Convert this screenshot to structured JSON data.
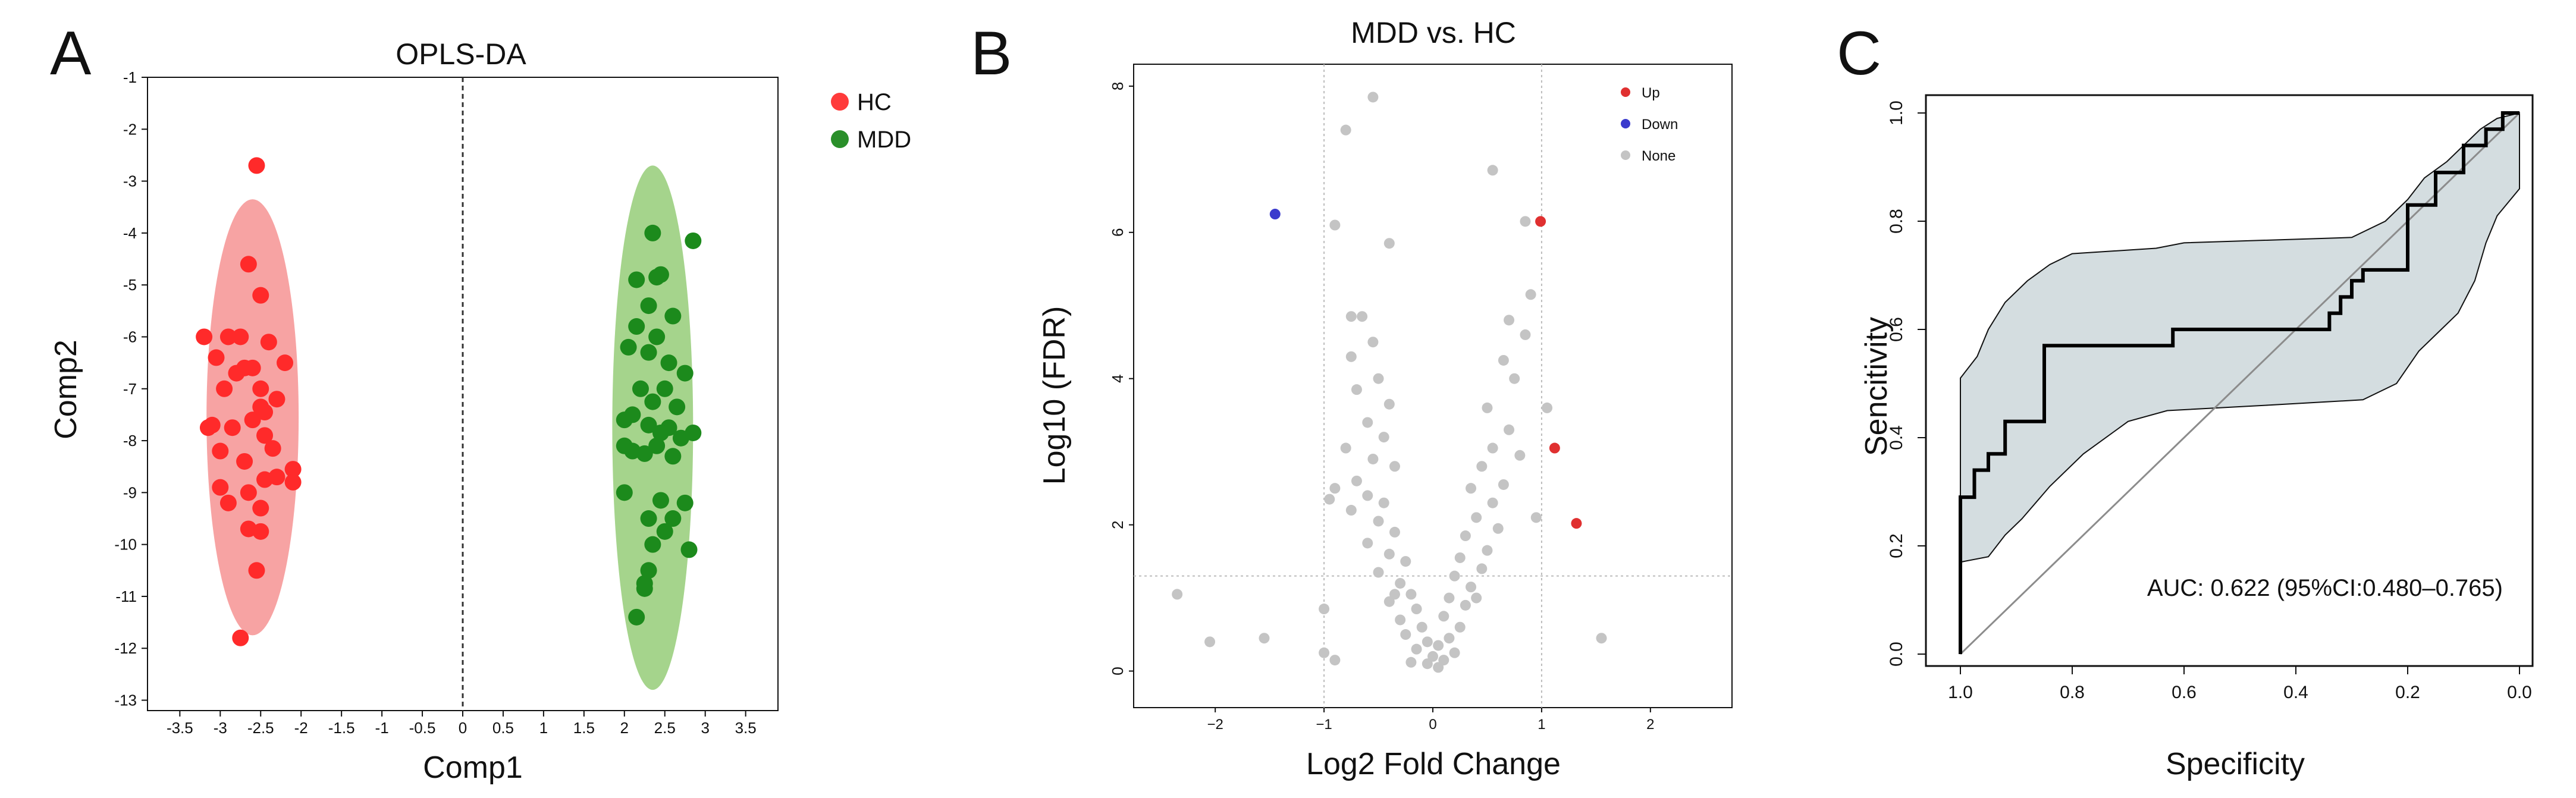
{
  "chart_data": [
    {
      "panel": "A",
      "type": "scatter",
      "title": "OPLS-DA",
      "xlabel": "Comp1",
      "ylabel": "Comp2",
      "xlim": [
        -3.9,
        3.9
      ],
      "ylim": [
        -13.2,
        -1.0
      ],
      "xticks": [
        -3.5,
        -3,
        -2.5,
        -2,
        -1.5,
        -1,
        -0.5,
        0,
        0.5,
        1,
        1.5,
        2,
        2.5,
        3,
        3.5
      ],
      "xtick_labels": [
        "-3.5",
        "-3",
        "-2.5",
        "-2",
        "-1.5",
        "-1",
        "-0.5",
        "0",
        "0.5",
        "1",
        "1.5",
        "2",
        "2.5",
        "3",
        "3.5"
      ],
      "yticks": [
        -1,
        -2,
        -3,
        -4,
        -5,
        -6,
        -7,
        -8,
        -9,
        -10,
        -11,
        -12,
        -13
      ],
      "ytick_labels": [
        "-1",
        "-2",
        "-3",
        "-4",
        "-5",
        "-6",
        "-7",
        "-8",
        "-9",
        "-10",
        "-11",
        "-12",
        "-13"
      ],
      "legend_position": "outside-right",
      "series": [
        {
          "name": "HC",
          "color": "#ff2a2a",
          "ellipse_color": "#f7a3a3",
          "ellipse": {
            "cx": -2.6,
            "cy": -7.55,
            "rx": 0.57,
            "ry": 4.2
          },
          "points": [
            [
              -2.55,
              -2.7
            ],
            [
              -2.65,
              -4.6
            ],
            [
              -2.5,
              -5.2
            ],
            [
              -3.2,
              -6.0
            ],
            [
              -2.9,
              -6.0
            ],
            [
              -2.75,
              -6.0
            ],
            [
              -2.4,
              -6.1
            ],
            [
              -3.05,
              -6.4
            ],
            [
              -2.7,
              -6.6
            ],
            [
              -2.6,
              -6.6
            ],
            [
              -2.2,
              -6.5
            ],
            [
              -2.8,
              -6.7
            ],
            [
              -2.95,
              -7.0
            ],
            [
              -2.5,
              -7.0
            ],
            [
              -2.3,
              -7.2
            ],
            [
              -2.5,
              -7.35
            ],
            [
              -2.45,
              -7.45
            ],
            [
              -3.1,
              -7.7
            ],
            [
              -3.15,
              -7.75
            ],
            [
              -2.85,
              -7.75
            ],
            [
              -2.6,
              -7.6
            ],
            [
              -2.45,
              -7.9
            ],
            [
              -3.0,
              -8.2
            ],
            [
              -2.35,
              -8.15
            ],
            [
              -2.7,
              -8.4
            ],
            [
              -2.1,
              -8.55
            ],
            [
              -3.0,
              -8.9
            ],
            [
              -2.45,
              -8.75
            ],
            [
              -2.3,
              -8.7
            ],
            [
              -2.1,
              -8.8
            ],
            [
              -2.9,
              -9.2
            ],
            [
              -2.65,
              -9.0
            ],
            [
              -2.5,
              -9.3
            ],
            [
              -2.65,
              -9.7
            ],
            [
              -2.5,
              -9.75
            ],
            [
              -2.55,
              -10.5
            ],
            [
              -2.75,
              -11.8
            ]
          ]
        },
        {
          "name": "MDD",
          "color": "#1c8a1c",
          "ellipse_color": "#a5d48c",
          "ellipse": {
            "cx": 2.35,
            "cy": -7.75,
            "rx": 0.5,
            "ry": 5.05
          },
          "points": [
            [
              2.35,
              -4.0
            ],
            [
              2.85,
              -4.15
            ],
            [
              2.45,
              -4.8
            ],
            [
              2.4,
              -4.85
            ],
            [
              2.15,
              -4.9
            ],
            [
              2.3,
              -5.4
            ],
            [
              2.6,
              -5.6
            ],
            [
              2.15,
              -5.8
            ],
            [
              2.4,
              -6.0
            ],
            [
              2.05,
              -6.2
            ],
            [
              2.3,
              -6.3
            ],
            [
              2.55,
              -6.5
            ],
            [
              2.75,
              -6.7
            ],
            [
              2.2,
              -7.0
            ],
            [
              2.5,
              -7.0
            ],
            [
              2.35,
              -7.25
            ],
            [
              2.65,
              -7.35
            ],
            [
              2.0,
              -7.6
            ],
            [
              2.1,
              -7.5
            ],
            [
              2.3,
              -7.7
            ],
            [
              2.55,
              -7.75
            ],
            [
              2.45,
              -7.85
            ],
            [
              2.85,
              -7.85
            ],
            [
              2.7,
              -7.95
            ],
            [
              2.0,
              -8.1
            ],
            [
              2.1,
              -8.2
            ],
            [
              2.25,
              -8.25
            ],
            [
              2.4,
              -8.1
            ],
            [
              2.6,
              -8.3
            ],
            [
              2.0,
              -9.0
            ],
            [
              2.45,
              -9.15
            ],
            [
              2.75,
              -9.2
            ],
            [
              2.3,
              -9.5
            ],
            [
              2.6,
              -9.5
            ],
            [
              2.5,
              -9.75
            ],
            [
              2.35,
              -10.0
            ],
            [
              2.8,
              -10.1
            ],
            [
              2.3,
              -10.5
            ],
            [
              2.25,
              -10.75
            ],
            [
              2.25,
              -10.85
            ],
            [
              2.15,
              -11.4
            ]
          ]
        }
      ]
    },
    {
      "panel": "B",
      "type": "scatter",
      "title": "MDD vs. HC",
      "xlabel": "Log2 Fold Change",
      "ylabel": "Log10 (FDR)",
      "xlim": [
        -2.75,
        2.75
      ],
      "ylim": [
        -0.5,
        8.3
      ],
      "xticks": [
        -2,
        -1,
        0,
        1,
        2
      ],
      "xtick_labels": [
        "−2",
        "−1",
        "0",
        "1",
        "2"
      ],
      "yticks": [
        0,
        2,
        4,
        6,
        8
      ],
      "ytick_labels": [
        "0",
        "2",
        "4",
        "6",
        "8"
      ],
      "threshold_lines": {
        "x": [
          -1,
          1
        ],
        "y": 1.3
      },
      "legend_position": "top-right",
      "series": [
        {
          "name": "Up",
          "color": "#e03030",
          "points": [
            [
              0.99,
              6.15
            ],
            [
              1.12,
              3.05
            ],
            [
              1.32,
              2.02
            ]
          ]
        },
        {
          "name": "Down",
          "color": "#3a3acd",
          "points": [
            [
              -1.45,
              6.25
            ]
          ]
        },
        {
          "name": "None",
          "color": "#c4c4c4",
          "points": [
            [
              -0.55,
              7.85
            ],
            [
              -0.8,
              7.4
            ],
            [
              0.55,
              6.85
            ],
            [
              -0.9,
              6.1
            ],
            [
              0.85,
              6.15
            ],
            [
              -0.4,
              5.85
            ],
            [
              -0.75,
              4.85
            ],
            [
              -0.65,
              4.85
            ],
            [
              -0.55,
              4.5
            ],
            [
              -0.75,
              4.3
            ],
            [
              -0.5,
              4.0
            ],
            [
              -0.4,
              3.65
            ],
            [
              -0.7,
              3.85
            ],
            [
              -0.6,
              3.4
            ],
            [
              -0.45,
              3.2
            ],
            [
              -0.8,
              3.05
            ],
            [
              -0.55,
              2.9
            ],
            [
              -0.35,
              2.8
            ],
            [
              -0.7,
              2.6
            ],
            [
              -0.6,
              2.4
            ],
            [
              -0.45,
              2.3
            ],
            [
              -0.9,
              2.5
            ],
            [
              -0.75,
              2.2
            ],
            [
              -0.5,
              2.05
            ],
            [
              -0.35,
              1.9
            ],
            [
              -0.6,
              1.75
            ],
            [
              -0.4,
              1.6
            ],
            [
              -0.25,
              1.5
            ],
            [
              -0.5,
              1.35
            ],
            [
              -0.3,
              1.2
            ],
            [
              -0.2,
              1.05
            ],
            [
              -0.4,
              0.95
            ],
            [
              -0.15,
              0.85
            ],
            [
              -0.3,
              0.7
            ],
            [
              -0.1,
              0.6
            ],
            [
              -0.25,
              0.5
            ],
            [
              -0.05,
              0.4
            ],
            [
              -0.15,
              0.3
            ],
            [
              0.0,
              0.2
            ],
            [
              -0.05,
              0.1
            ],
            [
              0.05,
              0.05
            ],
            [
              0.1,
              0.15
            ],
            [
              -0.2,
              0.12
            ],
            [
              0.9,
              5.15
            ],
            [
              0.7,
              4.8
            ],
            [
              0.85,
              4.6
            ],
            [
              0.65,
              4.25
            ],
            [
              0.75,
              4.0
            ],
            [
              0.5,
              3.6
            ],
            [
              0.7,
              3.3
            ],
            [
              0.55,
              3.05
            ],
            [
              0.8,
              2.95
            ],
            [
              0.45,
              2.8
            ],
            [
              0.65,
              2.55
            ],
            [
              0.35,
              2.5
            ],
            [
              0.55,
              2.3
            ],
            [
              0.4,
              2.1
            ],
            [
              0.6,
              1.95
            ],
            [
              0.3,
              1.85
            ],
            [
              0.5,
              1.65
            ],
            [
              0.25,
              1.55
            ],
            [
              0.45,
              1.4
            ],
            [
              0.2,
              1.3
            ],
            [
              0.35,
              1.15
            ],
            [
              0.15,
              1.0
            ],
            [
              0.3,
              0.9
            ],
            [
              0.1,
              0.75
            ],
            [
              0.25,
              0.6
            ],
            [
              0.15,
              0.45
            ],
            [
              0.05,
              0.35
            ],
            [
              0.2,
              0.25
            ],
            [
              1.05,
              3.6
            ],
            [
              0.95,
              2.1
            ],
            [
              -1.0,
              0.85
            ],
            [
              -0.95,
              2.35
            ],
            [
              -2.35,
              1.05
            ],
            [
              -2.05,
              0.4
            ],
            [
              -1.0,
              0.25
            ],
            [
              -0.9,
              0.15
            ],
            [
              1.55,
              0.45
            ],
            [
              -1.55,
              0.45
            ],
            [
              0.4,
              1.0
            ],
            [
              -0.35,
              1.05
            ]
          ]
        }
      ]
    },
    {
      "panel": "C",
      "type": "line",
      "title": "",
      "xlabel": "Specificity",
      "ylabel": "Sencitivity",
      "xlim": [
        1.0,
        0.0
      ],
      "ylim": [
        0.0,
        1.0
      ],
      "xticks": [
        1.0,
        0.8,
        0.6,
        0.4,
        0.2,
        0.0
      ],
      "xtick_labels": [
        "1.0",
        "0.8",
        "0.6",
        "0.4",
        "0.2",
        "0.0"
      ],
      "yticks": [
        0.0,
        0.2,
        0.4,
        0.6,
        0.8,
        1.0
      ],
      "ytick_labels": [
        "0.0",
        "0.2",
        "0.4",
        "0.6",
        "0.8",
        "1.0"
      ],
      "annotation": "AUC: 0.622 (95%CI:0.480–0.765)",
      "diagonal": [
        [
          1.0,
          0.0
        ],
        [
          0.0,
          1.0
        ]
      ],
      "roc_curve": [
        [
          1.0,
          0.0
        ],
        [
          1.0,
          0.29
        ],
        [
          0.975,
          0.29
        ],
        [
          0.975,
          0.34
        ],
        [
          0.95,
          0.34
        ],
        [
          0.95,
          0.37
        ],
        [
          0.92,
          0.37
        ],
        [
          0.92,
          0.43
        ],
        [
          0.85,
          0.43
        ],
        [
          0.85,
          0.57
        ],
        [
          0.62,
          0.57
        ],
        [
          0.62,
          0.6
        ],
        [
          0.34,
          0.6
        ],
        [
          0.34,
          0.63
        ],
        [
          0.32,
          0.63
        ],
        [
          0.32,
          0.66
        ],
        [
          0.3,
          0.66
        ],
        [
          0.3,
          0.69
        ],
        [
          0.28,
          0.69
        ],
        [
          0.28,
          0.71
        ],
        [
          0.2,
          0.71
        ],
        [
          0.2,
          0.83
        ],
        [
          0.15,
          0.83
        ],
        [
          0.15,
          0.89
        ],
        [
          0.1,
          0.89
        ],
        [
          0.1,
          0.94
        ],
        [
          0.06,
          0.94
        ],
        [
          0.06,
          0.97
        ],
        [
          0.03,
          0.97
        ],
        [
          0.03,
          1.0
        ],
        [
          0.0,
          1.0
        ]
      ],
      "ci_upper": [
        [
          1.0,
          0.51
        ],
        [
          0.97,
          0.55
        ],
        [
          0.95,
          0.6
        ],
        [
          0.92,
          0.65
        ],
        [
          0.88,
          0.69
        ],
        [
          0.84,
          0.72
        ],
        [
          0.8,
          0.74
        ],
        [
          0.65,
          0.75
        ],
        [
          0.6,
          0.76
        ],
        [
          0.3,
          0.77
        ],
        [
          0.24,
          0.8
        ],
        [
          0.2,
          0.84
        ],
        [
          0.17,
          0.88
        ],
        [
          0.13,
          0.91
        ],
        [
          0.1,
          0.94
        ],
        [
          0.07,
          0.97
        ],
        [
          0.04,
          0.99
        ],
        [
          0.0,
          1.0
        ]
      ],
      "ci_lower": [
        [
          1.0,
          0.17
        ],
        [
          0.95,
          0.18
        ],
        [
          0.92,
          0.22
        ],
        [
          0.89,
          0.25
        ],
        [
          0.84,
          0.31
        ],
        [
          0.78,
          0.37
        ],
        [
          0.7,
          0.43
        ],
        [
          0.63,
          0.45
        ],
        [
          0.45,
          0.46
        ],
        [
          0.28,
          0.47
        ],
        [
          0.22,
          0.5
        ],
        [
          0.18,
          0.56
        ],
        [
          0.14,
          0.6
        ],
        [
          0.11,
          0.63
        ],
        [
          0.08,
          0.69
        ],
        [
          0.06,
          0.76
        ],
        [
          0.04,
          0.81
        ],
        [
          0.0,
          0.86
        ]
      ]
    }
  ],
  "colors": {
    "ci_band": "#d4dde0",
    "line": "#000000",
    "diagonal": "#8c8c8c",
    "grid_dash": "#bbbbbb"
  }
}
